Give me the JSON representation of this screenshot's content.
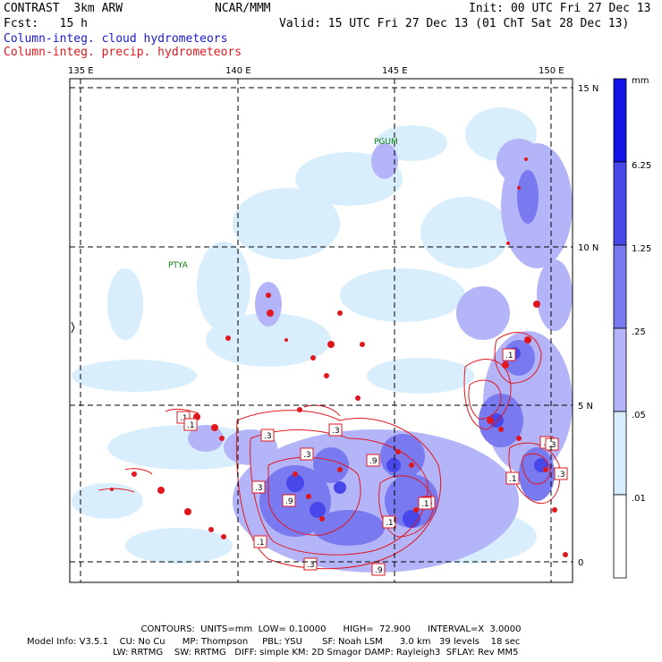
{
  "header": {
    "model": "CONTRAST  3km ARW",
    "org": "NCAR/MMM",
    "init": "Init: 00 UTC Fri 27 Dec 13",
    "fcst": "Fcst:   15 h",
    "valid": "Valid: 15 UTC Fri 27 Dec 13 (01 ChT Sat 28 Dec 13)",
    "field1": "Column-integ. cloud hydrometeors",
    "field2": "Column-integ. precip. hydrometeors"
  },
  "map": {
    "lon_labels": [
      "135 E",
      "140 E",
      "145 E",
      "150 E"
    ],
    "lat_labels": [
      "15 N",
      "10 N",
      "5 N",
      "0"
    ],
    "stations": [
      "PGUM",
      "PTYA"
    ],
    "contour_labels": [
      ".1",
      ".1",
      ".1",
      ".3",
      ".3",
      ".3",
      ".3",
      ".9",
      ".9",
      ".1",
      ".3",
      ".9",
      ".1",
      ".9",
      ".1",
      ".3",
      ".3",
      ".3",
      ".1"
    ]
  },
  "colorbar": {
    "unit": "mm",
    "levels": [
      "6.25",
      "1.25",
      ".25",
      ".05",
      ".01"
    ],
    "colors": [
      "#1212e6",
      "#4848ea",
      "#7a7af0",
      "#b4b4f8",
      "#d8eefc",
      "#ffffff"
    ]
  },
  "footer": {
    "contours": "CONTOURS:  UNITS=mm  LOW= 0.10000      HIGH=  72.900      INTERVAL=X  3.0000",
    "model_info": "Model Info: V3.5.1    CU: No Cu      MP: Thompson     PBL: YSU       SF: Noah LSM      3.0 km   39 levels    18 sec",
    "model_info2": "LW: RRTMG    SW: RRTMG   DIFF: simple KM: 2D Smagor DAMP: Rayleigh3  SFLAY: Rev MM5"
  }
}
